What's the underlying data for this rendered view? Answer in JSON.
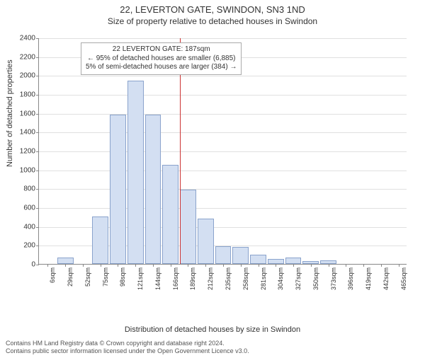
{
  "title": "22, LEVERTON GATE, SWINDON, SN3 1ND",
  "subtitle": "Size of property relative to detached houses in Swindon",
  "ylabel": "Number of detached properties",
  "xlabel": "Distribution of detached houses by size in Swindon",
  "footer_line1": "Contains HM Land Registry data © Crown copyright and database right 2024.",
  "footer_line2": "Contains public sector information licensed under the Open Government Licence v3.0.",
  "chart": {
    "type": "histogram",
    "ylim": [
      0,
      2400
    ],
    "ytick_step": 200,
    "yticks": [
      0,
      200,
      400,
      600,
      800,
      1000,
      1200,
      1400,
      1600,
      1800,
      2000,
      2200,
      2400
    ],
    "categories": [
      "6sqm",
      "29sqm",
      "52sqm",
      "75sqm",
      "98sqm",
      "121sqm",
      "144sqm",
      "166sqm",
      "189sqm",
      "212sqm",
      "235sqm",
      "258sqm",
      "281sqm",
      "304sqm",
      "327sqm",
      "350sqm",
      "373sqm",
      "396sqm",
      "419sqm",
      "442sqm",
      "465sqm"
    ],
    "values": [
      0,
      70,
      0,
      500,
      1580,
      1940,
      1580,
      1050,
      790,
      480,
      190,
      180,
      100,
      50,
      70,
      30,
      40,
      0,
      0,
      0,
      0
    ],
    "bar_fill": "#d3dff2",
    "bar_stroke": "#8aa3cc",
    "grid_color": "#e0e0e0",
    "axis_color": "#888888",
    "background": "#ffffff",
    "title_fontsize": 13,
    "subtitle_fontsize": 12,
    "label_fontsize": 11,
    "tick_fontsize": 10,
    "xtick_fontsize": 9,
    "refline": {
      "category_index": 8,
      "color": "#cc3333"
    },
    "annotation": {
      "line1": "22 LEVERTON GATE: 187sqm",
      "line2": "← 95% of detached houses are smaller (6,885)",
      "line3": "5% of semi-detached houses are larger (384) →",
      "border_color": "#aaaaaa",
      "background": "#ffffff",
      "fontsize": 10
    }
  }
}
